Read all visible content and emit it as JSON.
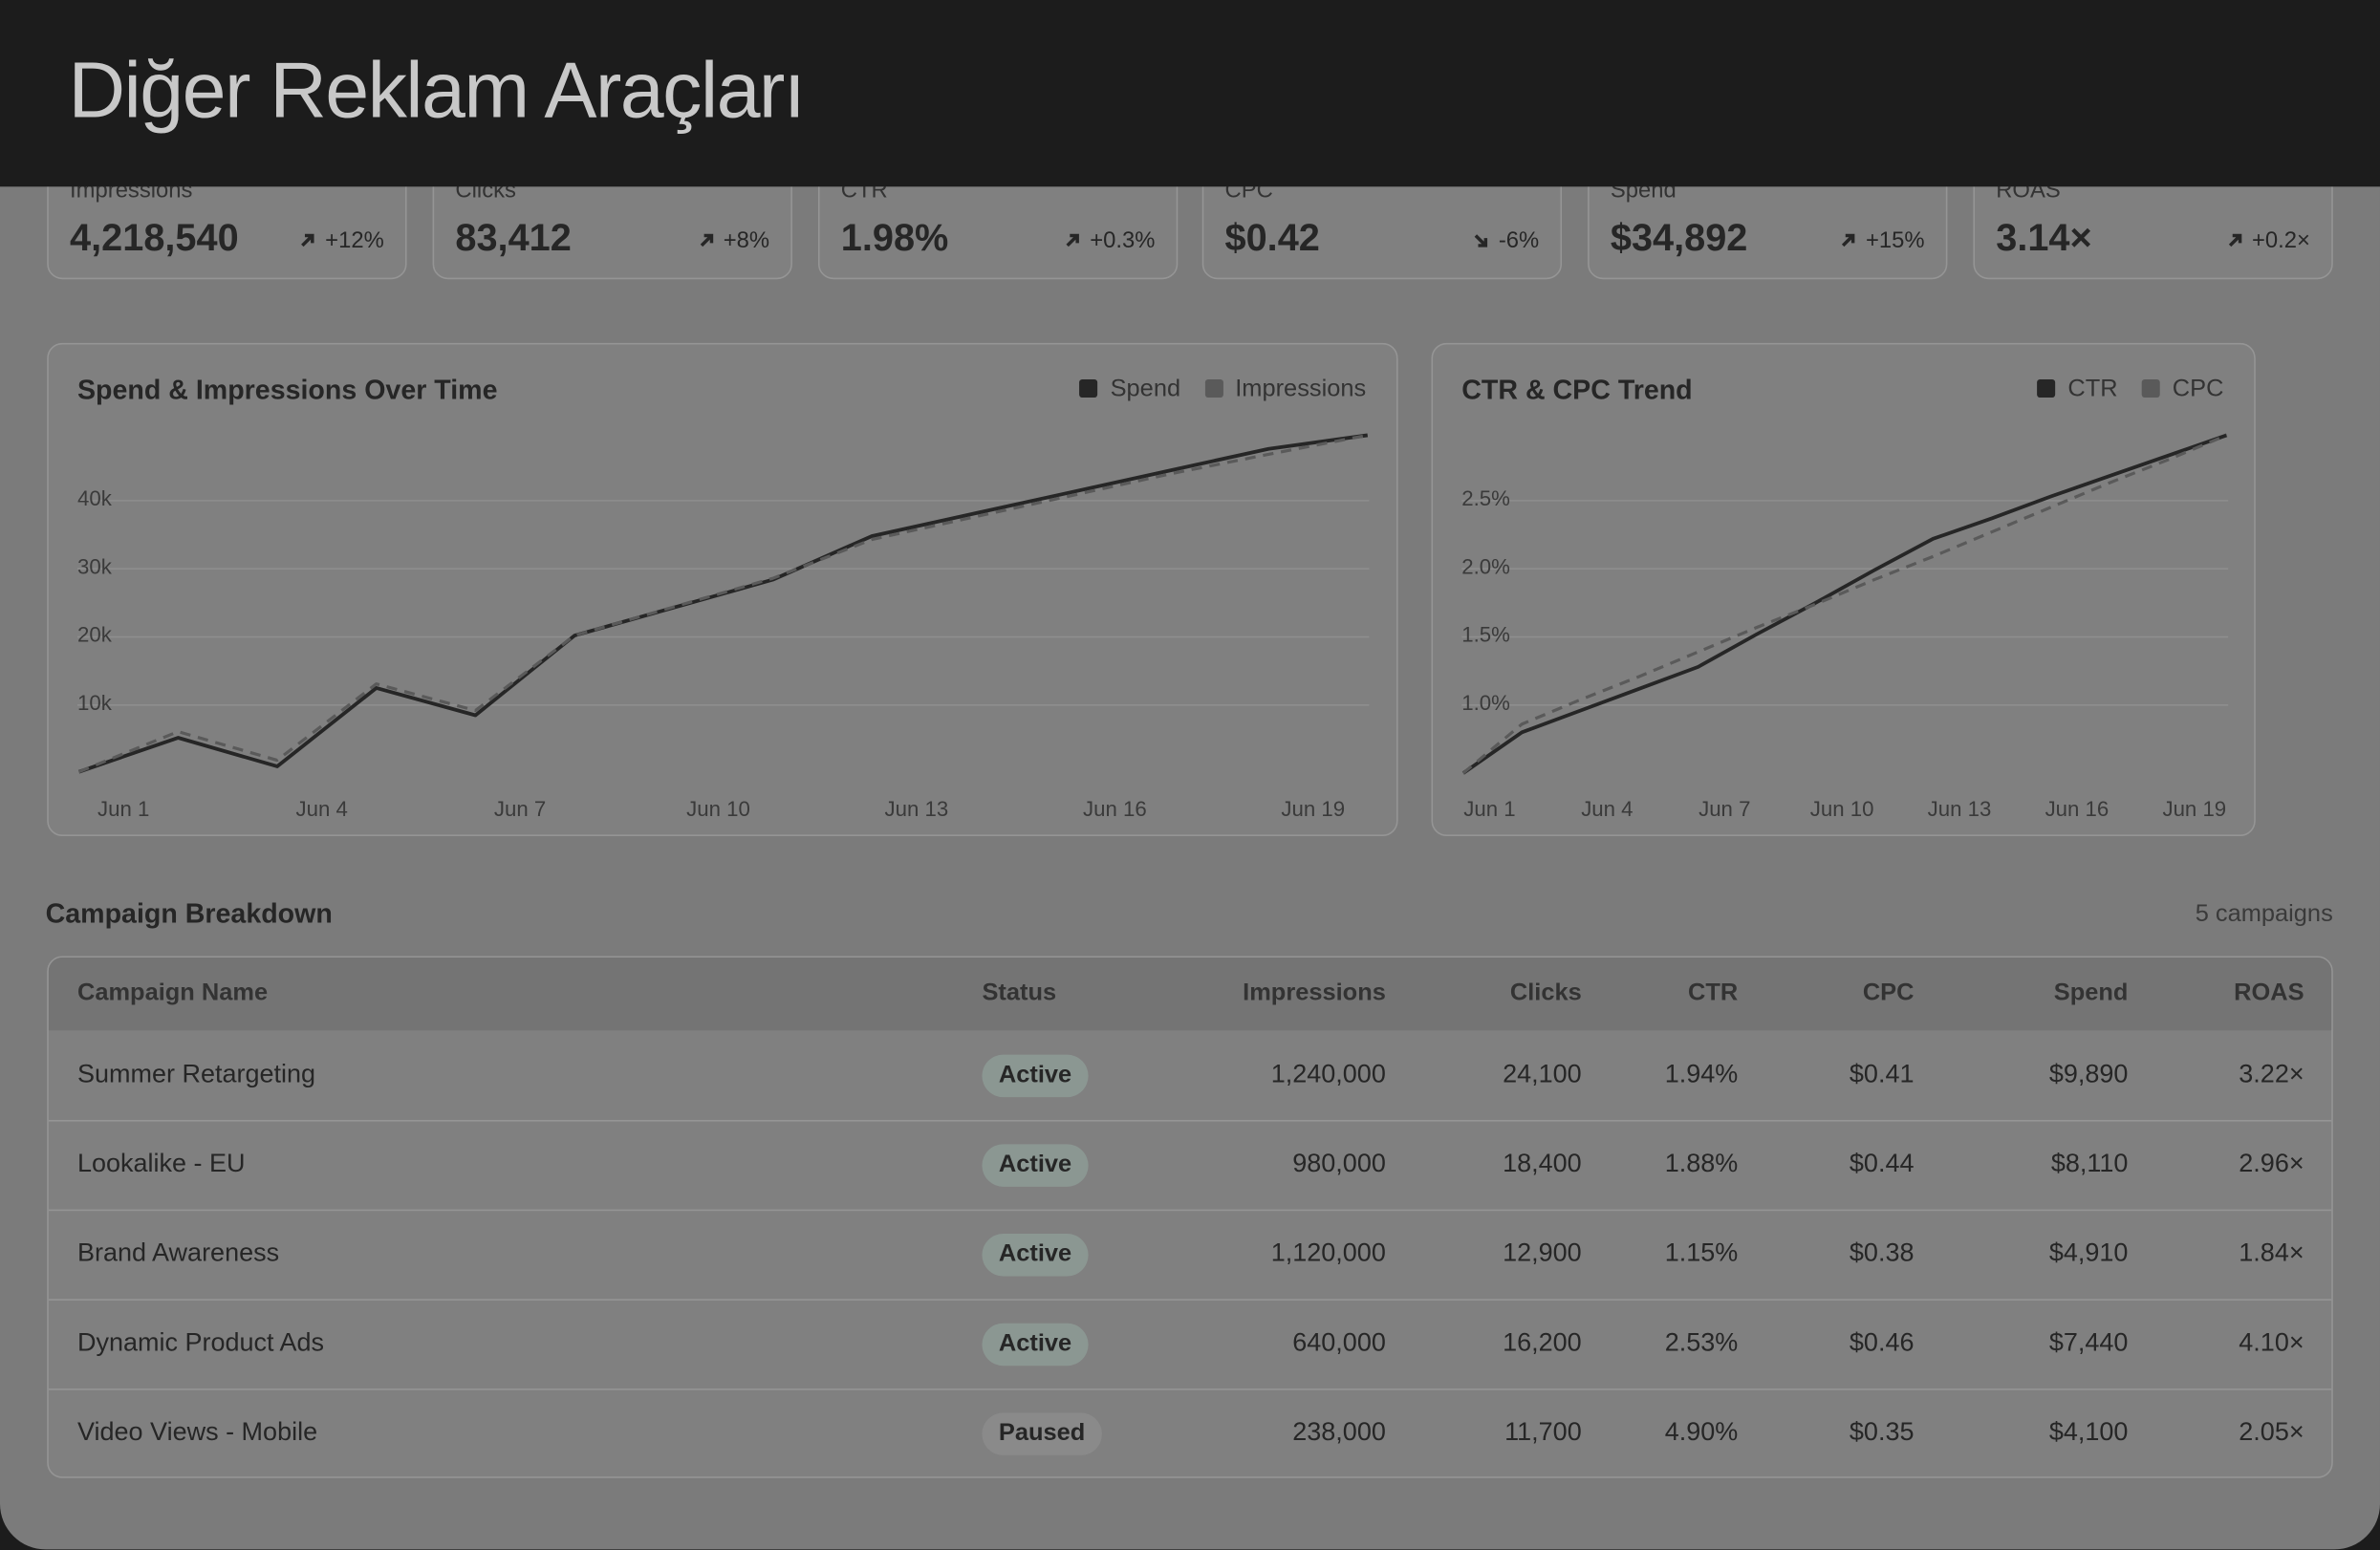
{
  "header": {
    "title": "Diğer Reklam Araçları"
  },
  "kpis": [
    {
      "label": "Impressions",
      "value": "4,218,540",
      "delta": "+12%"
    },
    {
      "label": "Clicks",
      "value": "83,412",
      "delta": "+8%"
    },
    {
      "label": "CTR",
      "value": "1.98%",
      "delta": "+0.3%"
    },
    {
      "label": "CPC",
      "value": "$0.42",
      "delta": "-6%"
    },
    {
      "label": "Spend",
      "value": "$34,892",
      "delta": "+15%"
    },
    {
      "label": "ROAS",
      "value": "3.14×",
      "delta": "+0.2×"
    }
  ],
  "charts": [
    {
      "type": "line",
      "title": "Spend & Impressions Over Time",
      "legend": "top-right",
      "grid": true,
      "categories": [
        "Jun 1",
        null,
        "Jun 4",
        null,
        "Jun 7",
        null,
        "Jun 10",
        null,
        "Jun 13",
        null,
        "Jun 16",
        null,
        "Jun 19",
        null
      ],
      "series": [
        {
          "name": "Spend",
          "color": "#262626",
          "dashed": false,
          "values": [
            200,
            5200,
            1000,
            12500,
            8500,
            20200,
            24300,
            28400,
            34800,
            38000,
            41200,
            44400,
            47600,
            49600
          ]
        },
        {
          "name": "Impressions",
          "color": "#5a5a5a",
          "dashed": true,
          "values": [
            200,
            6100,
            1900,
            13100,
            9200,
            20200,
            24400,
            28600,
            34300,
            37500,
            40700,
            43900,
            46800,
            49600
          ]
        }
      ],
      "ylim": [
        0,
        50000
      ],
      "yticks": [
        {
          "value": 10000,
          "label": "10k"
        },
        {
          "value": 20000,
          "label": "20k"
        },
        {
          "value": 30000,
          "label": "30k"
        },
        {
          "value": 40000,
          "label": "40k"
        }
      ]
    },
    {
      "type": "line",
      "title": "CTR & CPC Trend",
      "legend": "top-right",
      "grid": true,
      "categories": [
        "Jun 1",
        null,
        "Jun 4",
        null,
        "Jun 7",
        null,
        "Jun 10",
        null,
        "Jun 13",
        null,
        "Jun 16",
        null,
        "Jun 19",
        null
      ],
      "series": [
        {
          "name": "CTR",
          "color": "#262626",
          "dashed": false,
          "values": [
            0.5,
            0.8,
            0.96,
            1.12,
            1.28,
            1.52,
            1.75,
            1.99,
            2.22,
            2.37,
            2.53,
            2.68,
            2.83,
            2.98
          ]
        },
        {
          "name": "CPC",
          "color": "#5a5a5a",
          "dashed": true,
          "values": [
            0.5,
            0.86,
            1.04,
            1.21,
            1.39,
            1.57,
            1.74,
            1.92,
            2.09,
            2.27,
            2.45,
            2.63,
            2.8,
            2.98
          ]
        }
      ],
      "ylim": [
        0.5,
        3.0
      ],
      "yticks": [
        {
          "value": 1.0,
          "label": "1.0%"
        },
        {
          "value": 1.5,
          "label": "1.5%"
        },
        {
          "value": 2.0,
          "label": "2.0%"
        },
        {
          "value": 2.5,
          "label": "2.5%"
        }
      ]
    }
  ],
  "table": {
    "title": "Campaign Breakdown",
    "count": "5 campaigns",
    "columns": [
      "Campaign Name",
      "Status",
      "Impressions",
      "Clicks",
      "CTR",
      "CPC",
      "Spend",
      "ROAS"
    ],
    "rows": [
      [
        "Summer Retargeting",
        "Active",
        "1,240,000",
        "24,100",
        "1.94%",
        "$0.41",
        "$9,890",
        "3.22×"
      ],
      [
        "Lookalike - EU",
        "Active",
        "980,000",
        "18,400",
        "1.88%",
        "$0.44",
        "$8,110",
        "2.96×"
      ],
      [
        "Brand Awareness",
        "Active",
        "1,120,000",
        "12,900",
        "1.15%",
        "$0.38",
        "$4,910",
        "1.84×"
      ],
      [
        "Dynamic Product Ads",
        "Active",
        "640,000",
        "16,200",
        "2.53%",
        "$0.46",
        "$7,440",
        "4.10×"
      ],
      [
        "Video Views - Mobile",
        "Paused",
        "238,000",
        "11,700",
        "4.90%",
        "$0.35",
        "$4,100",
        "2.05×"
      ]
    ],
    "status_colors": [
      "#8b9792",
      "#8b9792",
      "#8b9792",
      "#8b9792",
      "#8a8a8a"
    ]
  }
}
